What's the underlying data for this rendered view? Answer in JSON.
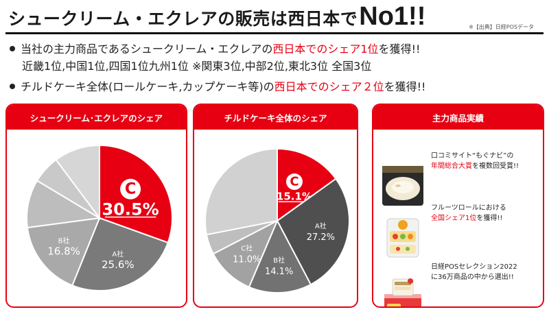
{
  "header": {
    "title": "シュークリーム・エクレアの販売は西日本で",
    "title_emph": "No1!!",
    "source": "※【出典】日経POSデータ"
  },
  "bullets": {
    "line1_a": "当社の主力商品であるシュークリーム・エクレアの",
    "line1_red": "西日本でのシェア1位",
    "line1_b": "を獲得!!",
    "line2": "近畿1位,中国1位,四国1位九州1位 ※関東3位,中部2位,東北3位 全国3位",
    "line3_a": "チルドケーキ全体(ロールケーキ,カップケーキ等)の",
    "line3_red": "西日本でのシェア２位",
    "line3_b": "を獲得!!"
  },
  "cards": {
    "card1_title": "シュークリーム･エクレアのシェア",
    "card2_title": "チルドケーキ全体のシェア",
    "card3_title": "主力商品実績"
  },
  "achievements": [
    {
      "line1": "口コミサイト“もぐナビ”の",
      "line2_red": "年間総合大賞",
      "line2_rest": "を複数回受賞!!"
    },
    {
      "line1": "フルーツロールにおける",
      "line2_red": "全国シェア1位",
      "line2_rest": "を獲得!!"
    },
    {
      "line1": "日経POSセレクション2022",
      "line2_red": "",
      "line2_rest": "に36万商品の中から選出!!"
    }
  ],
  "colors": {
    "brand": "#e60012",
    "companyA": "#7a7a7a",
    "companyB": "#a9a9a9",
    "others": [
      "#bdbdbd",
      "#c9c9c9",
      "#d6d6d6"
    ],
    "companyA_2": "#4f4f4f",
    "companyB_2": "#727272",
    "companyC_2": "#a2a2a2",
    "others_2": [
      "#bebebe",
      "#d1d1d1"
    ]
  },
  "chart_data": [
    {
      "type": "pie",
      "title": "シュークリーム･エクレアのシェア",
      "slices": [
        {
          "label": "",
          "value": 30.5,
          "display": "30.5%",
          "color": "#e60012",
          "brand": true
        },
        {
          "label": "A社",
          "value": 25.6,
          "display": "25.6%",
          "color": "#7a7a7a"
        },
        {
          "label": "B社",
          "value": 16.8,
          "display": "16.8%",
          "color": "#a9a9a9"
        },
        {
          "label": "",
          "value": 10.7,
          "display": "",
          "color": "#bdbdbd"
        },
        {
          "label": "",
          "value": 6.2,
          "display": "",
          "color": "#c9c9c9"
        },
        {
          "label": "",
          "value": 10.2,
          "display": "",
          "color": "#d6d6d6"
        }
      ]
    },
    {
      "type": "pie",
      "title": "チルドケーキ全体のシェア",
      "slices": [
        {
          "label": "",
          "value": 15.1,
          "display": "15.1%",
          "color": "#e60012",
          "brand": true
        },
        {
          "label": "A社",
          "value": 27.2,
          "display": "27.2%",
          "color": "#4f4f4f"
        },
        {
          "label": "B社",
          "value": 14.1,
          "display": "14.1%",
          "color": "#727272"
        },
        {
          "label": "C社",
          "value": 11.0,
          "display": "11.0%",
          "color": "#a2a2a2"
        },
        {
          "label": "",
          "value": 4.5,
          "display": "",
          "color": "#bebebe"
        },
        {
          "label": "",
          "value": 28.1,
          "display": "",
          "color": "#d1d1d1"
        }
      ]
    }
  ]
}
